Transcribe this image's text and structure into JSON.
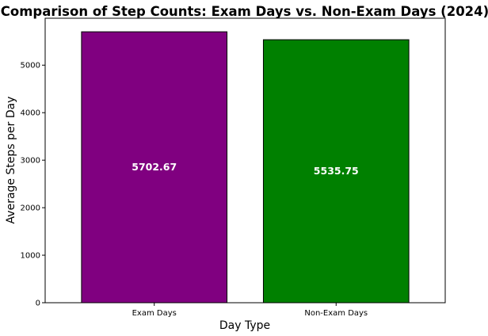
{
  "chart_data": {
    "type": "bar",
    "title": "Comparison of Step Counts: Exam Days vs. Non-Exam Days (2024)",
    "xlabel": "Day Type",
    "ylabel": "Average Steps per Day",
    "categories": [
      "Exam Days",
      "Non-Exam Days"
    ],
    "values": [
      5702.67,
      5535.75
    ],
    "data_labels": [
      "5702.67",
      "5535.75"
    ],
    "colors": [
      "#800080",
      "#008000"
    ],
    "ylim": [
      0,
      5988
    ],
    "yticks": [
      0,
      1000,
      2000,
      3000,
      4000,
      5000
    ],
    "grid": false,
    "legend": "none"
  }
}
